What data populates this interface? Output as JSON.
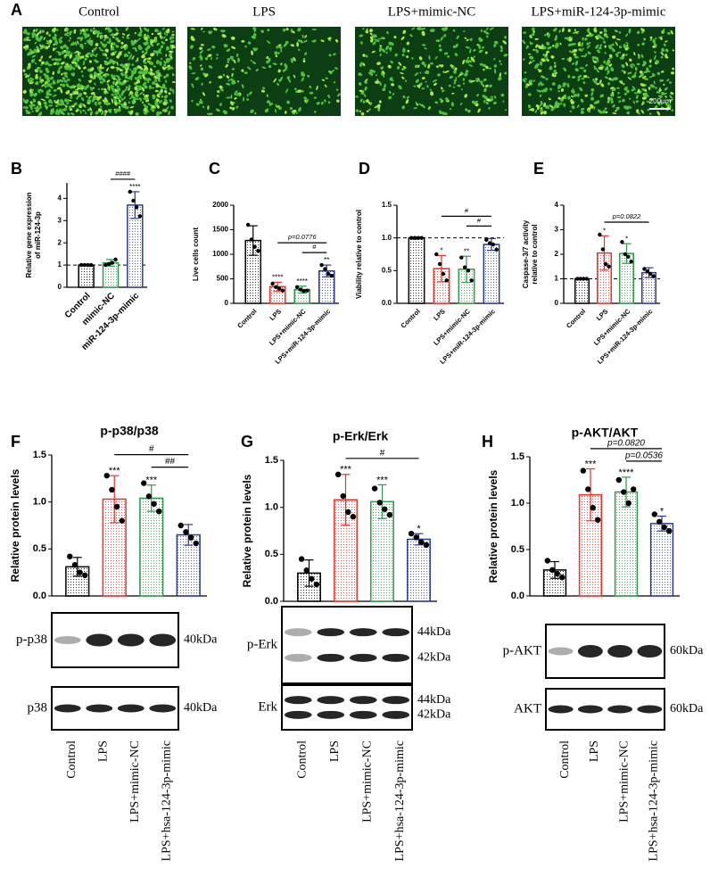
{
  "panel_labels": [
    "A",
    "B",
    "C",
    "D",
    "E",
    "F",
    "G",
    "H"
  ],
  "panel_a": {
    "images": [
      "Control",
      "LPS",
      "LPS+mimic-NC",
      "LPS+miR-124-3p-mimic"
    ],
    "scale_bar": "200μm"
  },
  "chart_data": [
    {
      "type": "bar",
      "ylabel": [
        "Relative gene expression",
        "of miR-124-3p"
      ],
      "categories": [
        "Control",
        "mimic-NC",
        "miR-124-3p-mimic"
      ],
      "colors": [
        "#000000",
        "#2e9a4a",
        "#2b3a9a"
      ],
      "values": [
        1,
        1.1,
        3.7
      ],
      "errors": [
        0.03,
        0.15,
        0.6
      ],
      "points": [
        [
          1,
          1,
          1,
          1
        ],
        [
          1.0,
          1.05,
          1.1,
          1.25
        ],
        [
          4.3,
          3.9,
          3.6,
          3.2
        ]
      ],
      "sig_labels": [
        null,
        null,
        "****"
      ],
      "brackets": [
        {
          "from": "mimic-NC",
          "to": "miR-124-3p-mimic",
          "label": "####"
        }
      ],
      "ref_line": 1,
      "ylim": [
        0,
        4.7
      ],
      "yticks": [
        0,
        1,
        2,
        3,
        4
      ]
    },
    {
      "type": "bar",
      "ylabel": [
        "Live cells count"
      ],
      "categories": [
        "Control",
        "LPS",
        "LPS+mimic-NC",
        "LPS+miR-124-3p-mimic"
      ],
      "colors": [
        "#000000",
        "#e8322b",
        "#2e9a4a",
        "#2b3a9a"
      ],
      "values": [
        1280,
        340,
        280,
        660
      ],
      "errors": [
        300,
        90,
        70,
        120
      ],
      "points": [
        [
          1600,
          1300,
          1150,
          1070
        ],
        [
          400,
          330,
          300,
          260
        ],
        [
          330,
          280,
          250,
          260
        ],
        [
          780,
          700,
          600,
          560
        ]
      ],
      "sig_labels": [
        null,
        "****",
        "****",
        "**"
      ],
      "brackets": [
        {
          "from": "LPS+mimic-NC",
          "to": "LPS+miR-124-3p-mimic",
          "label": "#"
        },
        {
          "from": "LPS",
          "to": "LPS+miR-124-3p-mimic",
          "label": "p=0.0776"
        }
      ],
      "ylim": [
        0,
        2000
      ],
      "yticks": [
        0,
        500,
        1000,
        1500,
        2000
      ]
    },
    {
      "type": "bar",
      "ylabel": [
        "Viability relative to control"
      ],
      "categories": [
        "Control",
        "LPS",
        "LPS+mimic-NC",
        "LPS+miR-124-3p-mimic"
      ],
      "colors": [
        "#000000",
        "#e8322b",
        "#2e9a4a",
        "#2b3a9a"
      ],
      "values": [
        1,
        0.53,
        0.52,
        0.9
      ],
      "errors": [
        0.01,
        0.2,
        0.2,
        0.09
      ],
      "points": [
        [
          1,
          1,
          1,
          1
        ],
        [
          0.75,
          0.6,
          0.45,
          0.35
        ],
        [
          0.7,
          0.55,
          0.5,
          0.35
        ],
        [
          0.97,
          0.92,
          0.9,
          0.82
        ]
      ],
      "sig_labels": [
        null,
        "*",
        "**",
        null
      ],
      "brackets": [
        {
          "from": "LPS+mimic-NC",
          "to": "LPS+miR-124-3p-mimic",
          "label": "#"
        },
        {
          "from": "LPS",
          "to": "LPS+miR-124-3p-mimic",
          "label": "#"
        }
      ],
      "ref_line": 1,
      "ylim": [
        0,
        1.5
      ],
      "yticks": [
        {
          "value": 0,
          "label": "0.0"
        },
        {
          "value": 0.5,
          "label": "0.5"
        },
        {
          "value": 1,
          "label": "1.0"
        },
        {
          "value": 1.5,
          "label": "1.5"
        }
      ]
    },
    {
      "type": "bar",
      "ylabel": [
        "Caspase-3/7 activity",
        "relative to control"
      ],
      "categories": [
        "Control",
        "LPS",
        "LPS+mimic-NC",
        "LPS+miR-124-3p-mimic"
      ],
      "colors": [
        "#000000",
        "#e8322b",
        "#2e9a4a",
        "#2b3a9a"
      ],
      "values": [
        1,
        2.05,
        2.03,
        1.25
      ],
      "errors": [
        0.02,
        0.7,
        0.4,
        0.2
      ],
      "points": [
        [
          1,
          1,
          1,
          1
        ],
        [
          2.8,
          2.2,
          1.6,
          1.5
        ],
        [
          2.5,
          2.0,
          1.9,
          1.7
        ],
        [
          1.4,
          1.3,
          1.2,
          1.1
        ]
      ],
      "sig_labels": [
        null,
        "*",
        "*",
        null
      ],
      "brackets": [
        {
          "from": "LPS",
          "to": "LPS+miR-124-3p-mimic",
          "label": "p=0.0822"
        }
      ],
      "ref_line": 1,
      "ylim": [
        0,
        4
      ],
      "yticks": [
        0,
        1,
        2,
        3,
        4
      ]
    },
    {
      "type": "bar",
      "title": "p-p38/p38",
      "ylabel": [
        "Relative protein levels"
      ],
      "categories": [
        "Control",
        "LPS",
        "LPS+mimic-NC",
        "LPS+hsa-124-3p-mimic"
      ],
      "colors": [
        "#000000",
        "#e8322b",
        "#2e9a4a",
        "#2b3a9a"
      ],
      "values": [
        0.31,
        1.03,
        1.04,
        0.65
      ],
      "errors": [
        0.1,
        0.25,
        0.14,
        0.11
      ],
      "points": [
        [
          0.42,
          0.33,
          0.25,
          0.22
        ],
        [
          1.28,
          1.13,
          0.95,
          0.8
        ],
        [
          1.2,
          1.06,
          0.98,
          0.9
        ],
        [
          0.75,
          0.68,
          0.62,
          0.56
        ]
      ],
      "sig_labels": [
        null,
        "***",
        "***",
        null
      ],
      "brackets": [
        {
          "from": "LPS+mimic-NC",
          "to": "LPS+hsa-124-3p-mimic",
          "label": "##"
        },
        {
          "from": "LPS",
          "to": "LPS+hsa-124-3p-mimic",
          "label": "#"
        }
      ],
      "ylim": [
        0,
        1.5
      ],
      "yticks": [
        {
          "value": 0,
          "label": "0.0"
        },
        {
          "value": 0.5,
          "label": "0.5"
        },
        {
          "value": 1,
          "label": "1.0"
        },
        {
          "value": 1.5,
          "label": "1.5"
        }
      ]
    },
    {
      "type": "bar",
      "title": "p-Erk/Erk",
      "ylabel": [
        "Relative protein levels"
      ],
      "categories": [
        "Control",
        "LPS",
        "LPS+mimic-NC",
        "LPS+hsa-124-3p-mimic"
      ],
      "colors": [
        "#000000",
        "#e8322b",
        "#2e9a4a",
        "#2b3a9a"
      ],
      "values": [
        0.3,
        1.08,
        1.06,
        0.66
      ],
      "errors": [
        0.14,
        0.27,
        0.18,
        0.06
      ],
      "points": [
        [
          0.45,
          0.33,
          0.24,
          0.18
        ],
        [
          1.35,
          1.12,
          0.95,
          0.9
        ],
        [
          1.2,
          1.05,
          0.98,
          0.92
        ],
        [
          0.72,
          0.68,
          0.63,
          0.6
        ]
      ],
      "sig_labels": [
        null,
        "***",
        "***",
        "*"
      ],
      "brackets": [
        {
          "from": "LPS",
          "to": "LPS+hsa-124-3p-mimic",
          "label": "#"
        }
      ],
      "ylim": [
        0,
        1.5
      ],
      "yticks": [
        {
          "value": 0,
          "label": "0.0"
        },
        {
          "value": 0.5,
          "label": "0.5"
        },
        {
          "value": 1,
          "label": "1.0"
        },
        {
          "value": 1.5,
          "label": "1.5"
        }
      ]
    },
    {
      "type": "bar",
      "title": "p-AKT/AKT",
      "ylabel": [
        "Relative protein levels"
      ],
      "categories": [
        "Control",
        "LPS",
        "LPS+mimic-NC",
        "LPS+hsa-124-3p-mimic"
      ],
      "colors": [
        "#000000",
        "#e8322b",
        "#2e9a4a",
        "#2b3a9a"
      ],
      "values": [
        0.28,
        1.09,
        1.12,
        0.78
      ],
      "errors": [
        0.09,
        0.28,
        0.16,
        0.08
      ],
      "points": [
        [
          0.38,
          0.28,
          0.24,
          0.2
        ],
        [
          1.35,
          1.15,
          0.95,
          0.82
        ],
        [
          1.25,
          1.12,
          1.0,
          1.15
        ],
        [
          0.88,
          0.8,
          0.74,
          0.7
        ]
      ],
      "sig_labels": [
        null,
        "***",
        "****",
        "*"
      ],
      "brackets": [
        {
          "from": "LPS+mimic-NC",
          "to": "LPS+hsa-124-3p-mimic",
          "label": "p=0.0536"
        },
        {
          "from": "LPS",
          "to": "LPS+hsa-124-3p-mimic",
          "label": "p=0.0820"
        }
      ],
      "ylim": [
        0,
        1.5
      ],
      "yticks": [
        {
          "value": 0,
          "label": "0.0"
        },
        {
          "value": 0.5,
          "label": "0.5"
        },
        {
          "value": 1,
          "label": "1.0"
        },
        {
          "value": 1.5,
          "label": "1.5"
        }
      ]
    }
  ],
  "blots": [
    {
      "rows": [
        {
          "label": "p-p38",
          "sizes": [
            "40kDa"
          ]
        },
        {
          "label": "p38",
          "sizes": [
            "40kDa"
          ]
        }
      ]
    },
    {
      "rows": [
        {
          "label": "p-Erk",
          "sizes": [
            "44kDa",
            "42kDa"
          ]
        },
        {
          "label": "Erk",
          "sizes": [
            "44kDa",
            "42kDa"
          ]
        }
      ]
    },
    {
      "rows": [
        {
          "label": "p-AKT",
          "sizes": [
            "60kDa"
          ]
        },
        {
          "label": "AKT",
          "sizes": [
            "60kDa"
          ]
        }
      ]
    }
  ]
}
